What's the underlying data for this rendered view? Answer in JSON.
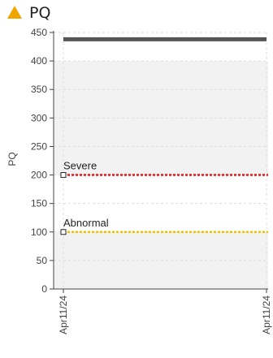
{
  "header": {
    "title": "PQ",
    "icon": "warning-triangle-icon",
    "icon_color": "#f0a500"
  },
  "chart_data": {
    "type": "line",
    "title": "PQ",
    "ylabel": "PQ",
    "xlabel": "",
    "ylim": [
      0,
      450
    ],
    "yticks": [
      0,
      50,
      100,
      150,
      200,
      250,
      300,
      350,
      400,
      450
    ],
    "x_ticks": [
      "Apr11/24",
      "Apr11/24"
    ],
    "grid": true,
    "series": [
      {
        "values": [
          438,
          438
        ],
        "color": "#555555"
      }
    ],
    "thresholds": [
      {
        "name": "Severe",
        "value": 200,
        "color": "#e8141c"
      },
      {
        "name": "Abnormal",
        "value": 100,
        "color": "#f2c200"
      }
    ],
    "normal_band_color": "#f2f2f2"
  }
}
